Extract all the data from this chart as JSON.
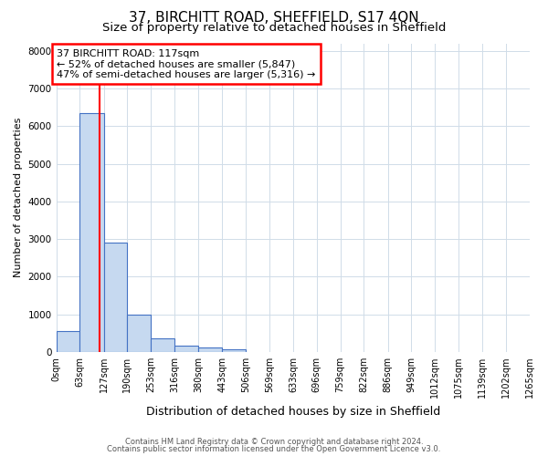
{
  "title1": "37, BIRCHITT ROAD, SHEFFIELD, S17 4QN",
  "title2": "Size of property relative to detached houses in Sheffield",
  "xlabel": "Distribution of detached houses by size in Sheffield",
  "ylabel": "Number of detached properties",
  "bar_edges": [
    0,
    63,
    127,
    190,
    253,
    316,
    380,
    443,
    506,
    569,
    633,
    696,
    759,
    822,
    886,
    949,
    1012,
    1075,
    1139,
    1202,
    1265
  ],
  "bar_heights": [
    560,
    6340,
    2900,
    980,
    370,
    155,
    110,
    65,
    0,
    0,
    0,
    0,
    0,
    0,
    0,
    0,
    0,
    0,
    0,
    0
  ],
  "bar_color": "#c6d9f0",
  "bar_edge_color": "#4472c4",
  "red_line_x": 117,
  "annotation_line1": "37 BIRCHITT ROAD: 117sqm",
  "annotation_line2": "← 52% of detached houses are smaller (5,847)",
  "annotation_line3": "47% of semi-detached houses are larger (5,316) →",
  "ylim": [
    0,
    8200
  ],
  "yticks": [
    0,
    1000,
    2000,
    3000,
    4000,
    5000,
    6000,
    7000,
    8000
  ],
  "grid_color": "#d0dce8",
  "footer1": "Contains HM Land Registry data © Crown copyright and database right 2024.",
  "footer2": "Contains public sector information licensed under the Open Government Licence v3.0.",
  "title1_fontsize": 11,
  "title2_fontsize": 9.5,
  "tick_label_fontsize": 7,
  "ylabel_fontsize": 8,
  "xlabel_fontsize": 9,
  "annotation_fontsize": 8,
  "footer_fontsize": 6
}
